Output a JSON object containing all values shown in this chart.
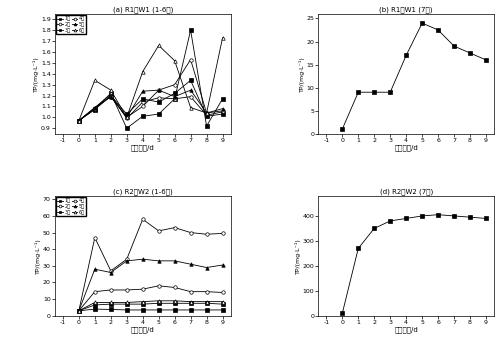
{
  "x": [
    -1,
    0,
    1,
    2,
    3,
    4,
    5,
    6,
    7,
    8,
    9
  ],
  "subplot_a": {
    "title": "(a) R1，W1 (1-6号)",
    "ylabel": "TP/(mg·L⁻¹)",
    "xlabel": "水解时间/d",
    "ylim": [
      0.85,
      1.95
    ],
    "yticks": [
      0.9,
      1.0,
      1.1,
      1.2,
      1.3,
      1.4,
      1.5,
      1.6,
      1.7,
      1.8,
      1.9
    ],
    "series": [
      {
        "label": "1号",
        "marker": "s",
        "filled": true,
        "data": [
          null,
          0.97,
          1.08,
          1.22,
          0.9,
          1.01,
          1.03,
          1.17,
          1.8,
          0.92,
          1.17
        ]
      },
      {
        "label": "2号",
        "marker": "o",
        "filled": false,
        "data": [
          null,
          0.97,
          1.09,
          1.21,
          0.99,
          1.14,
          1.18,
          1.17,
          1.19,
          1.02,
          1.05
        ]
      },
      {
        "label": "3号",
        "marker": "s",
        "filled": true,
        "data": [
          null,
          0.97,
          1.07,
          1.2,
          1.03,
          1.17,
          1.14,
          1.22,
          1.34,
          1.01,
          1.03
        ]
      },
      {
        "label": "4号",
        "marker": "o",
        "filled": false,
        "data": [
          null,
          0.97,
          1.08,
          1.19,
          1.0,
          1.1,
          1.25,
          1.3,
          1.53,
          1.04,
          1.06
        ]
      },
      {
        "label": "5号",
        "marker": "^",
        "filled": true,
        "data": [
          null,
          0.97,
          1.09,
          1.19,
          1.0,
          1.24,
          1.25,
          1.19,
          1.25,
          1.04,
          1.08
        ]
      },
      {
        "label": "6号",
        "marker": "^",
        "filled": false,
        "data": [
          null,
          0.97,
          1.34,
          1.25,
          1.0,
          1.42,
          1.66,
          1.52,
          1.09,
          1.04,
          1.73
        ]
      }
    ]
  },
  "subplot_b": {
    "title": "(b) R1，W1 (7号)",
    "ylabel": "TP/(mg·L⁻¹)",
    "xlabel": "水解时间/d",
    "ylim": [
      0,
      26
    ],
    "yticks": [
      0,
      5,
      10,
      15,
      20,
      25
    ],
    "series": [
      {
        "label": "7号",
        "marker": "s",
        "filled": true,
        "data": [
          null,
          1.0,
          9.0,
          9.0,
          9.0,
          17.0,
          24.0,
          22.5,
          19.0,
          17.5,
          16.0
        ]
      }
    ]
  },
  "subplot_c": {
    "title": "(c) R2，W2 (1-6号)",
    "ylabel": "TP/(mg·L⁻¹)",
    "xlabel": "水解时间/d",
    "ylim": [
      0,
      72
    ],
    "yticks": [
      0,
      10,
      20,
      30,
      40,
      50,
      60,
      70
    ],
    "series": [
      {
        "label": "1号",
        "marker": "s",
        "filled": true,
        "data": [
          null,
          3.0,
          4.0,
          3.8,
          3.5,
          3.5,
          3.5,
          3.5,
          3.5,
          3.5,
          3.5
        ]
      },
      {
        "label": "2号",
        "marker": "o",
        "filled": false,
        "data": [
          null,
          3.0,
          14.5,
          15.5,
          15.5,
          16.0,
          18.0,
          17.0,
          14.5,
          14.5,
          14.0
        ]
      },
      {
        "label": "3号",
        "marker": "s",
        "filled": true,
        "data": [
          null,
          3.0,
          6.5,
          7.0,
          7.0,
          7.0,
          7.5,
          7.5,
          7.5,
          7.5,
          7.0
        ]
      },
      {
        "label": "4号",
        "marker": "o",
        "filled": false,
        "data": [
          null,
          3.0,
          47.0,
          27.0,
          34.0,
          58.0,
          51.0,
          53.0,
          50.0,
          49.0,
          49.5
        ]
      },
      {
        "label": "5号",
        "marker": "^",
        "filled": true,
        "data": [
          null,
          3.0,
          28.0,
          26.0,
          33.0,
          34.0,
          33.0,
          33.0,
          31.0,
          29.0,
          30.5
        ]
      },
      {
        "label": "6号",
        "marker": "^",
        "filled": false,
        "data": [
          null,
          3.0,
          8.0,
          8.0,
          8.0,
          8.5,
          9.0,
          9.0,
          8.5,
          8.5,
          8.5
        ]
      }
    ]
  },
  "subplot_d": {
    "title": "(d) R2，W2 (7号)",
    "ylabel": "TP/(mg·L⁻¹)",
    "xlabel": "水解时间/d",
    "ylim": [
      0,
      480
    ],
    "yticks": [
      0,
      100,
      200,
      300,
      400
    ],
    "series": [
      {
        "label": "7号",
        "marker": "s",
        "filled": true,
        "data": [
          null,
          10.0,
          270.0,
          350.0,
          380.0,
          390.0,
          400.0,
          405.0,
          400.0,
          395.0,
          390.0
        ]
      }
    ]
  }
}
